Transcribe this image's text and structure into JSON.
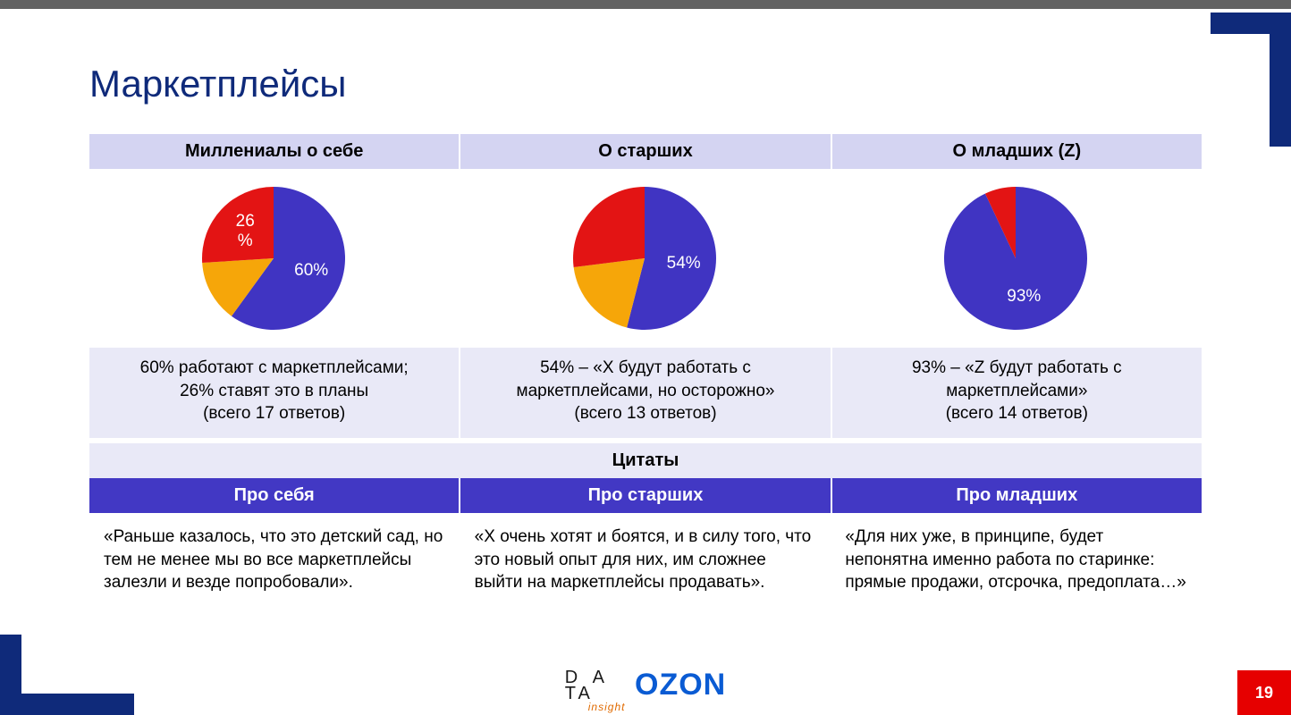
{
  "slide": {
    "title": "Маркетплейсы",
    "pageNumber": "19"
  },
  "colors": {
    "brandDark": "#0f2a7a",
    "headerBg": "#d4d4f2",
    "panelBg": "#e9e9f7",
    "subHeaderBg": "#4238c4",
    "accentRed": "#e60000",
    "topBar": "#636363",
    "white": "#ffffff",
    "text": "#000000"
  },
  "columns": [
    {
      "header": "Миллениалы о себе",
      "pie": {
        "type": "pie",
        "radius": 80,
        "slices": [
          {
            "value": 60,
            "color": "#4034c2",
            "showLabel": true,
            "labelSuffix": "%"
          },
          {
            "value": 14,
            "color": "#f6a609",
            "showLabel": false
          },
          {
            "value": 26,
            "color": "#e31414",
            "showLabel": true,
            "labelSuffix": "\n%"
          }
        ],
        "startAngle": 0
      },
      "description": "60% работают с маркетплейсами;\n26% ставят это в планы\n(всего 17 ответов)"
    },
    {
      "header": "О старших",
      "pie": {
        "type": "pie",
        "radius": 80,
        "slices": [
          {
            "value": 54,
            "color": "#4034c2",
            "showLabel": true,
            "labelSuffix": "%"
          },
          {
            "value": 19,
            "color": "#f6a609",
            "showLabel": false
          },
          {
            "value": 27,
            "color": "#e31414",
            "showLabel": false
          }
        ],
        "startAngle": 0
      },
      "description": "54% – «X будут работать с\nмаркетплейсами, но  осторожно»\n(всего 13 ответов)"
    },
    {
      "header": "О младших (Z)",
      "pie": {
        "type": "pie",
        "radius": 80,
        "slices": [
          {
            "value": 93,
            "color": "#4034c2",
            "showLabel": true,
            "labelSuffix": "%"
          },
          {
            "value": 7,
            "color": "#e31414",
            "showLabel": false
          }
        ],
        "startAngle": 0
      },
      "description": "93% – «Z будут работать с\nмаркетплейсами»\n(всего 14 ответов)"
    }
  ],
  "quotes": {
    "sectionLabel": "Цитаты",
    "headers": [
      "Про себя",
      "Про старших",
      "Про младших"
    ],
    "items": [
      "«Раньше казалось, что это детский сад, но тем не менее мы во все маркетплейсы залезли и везде попробовали».",
      "«X очень хотят и боятся, и в силу того, что это новый опыт для них, им сложнее выйти на маркетплейсы продавать».",
      "«Для них уже, в принципе, будет непонятна именно работа по старинке: прямые продажи, отсрочка, предоплата…»"
    ]
  },
  "footer": {
    "logo1_line1": "D A",
    "logo1_line2": "TA",
    "logo1_sub": "insight",
    "logo2": "OZON"
  }
}
